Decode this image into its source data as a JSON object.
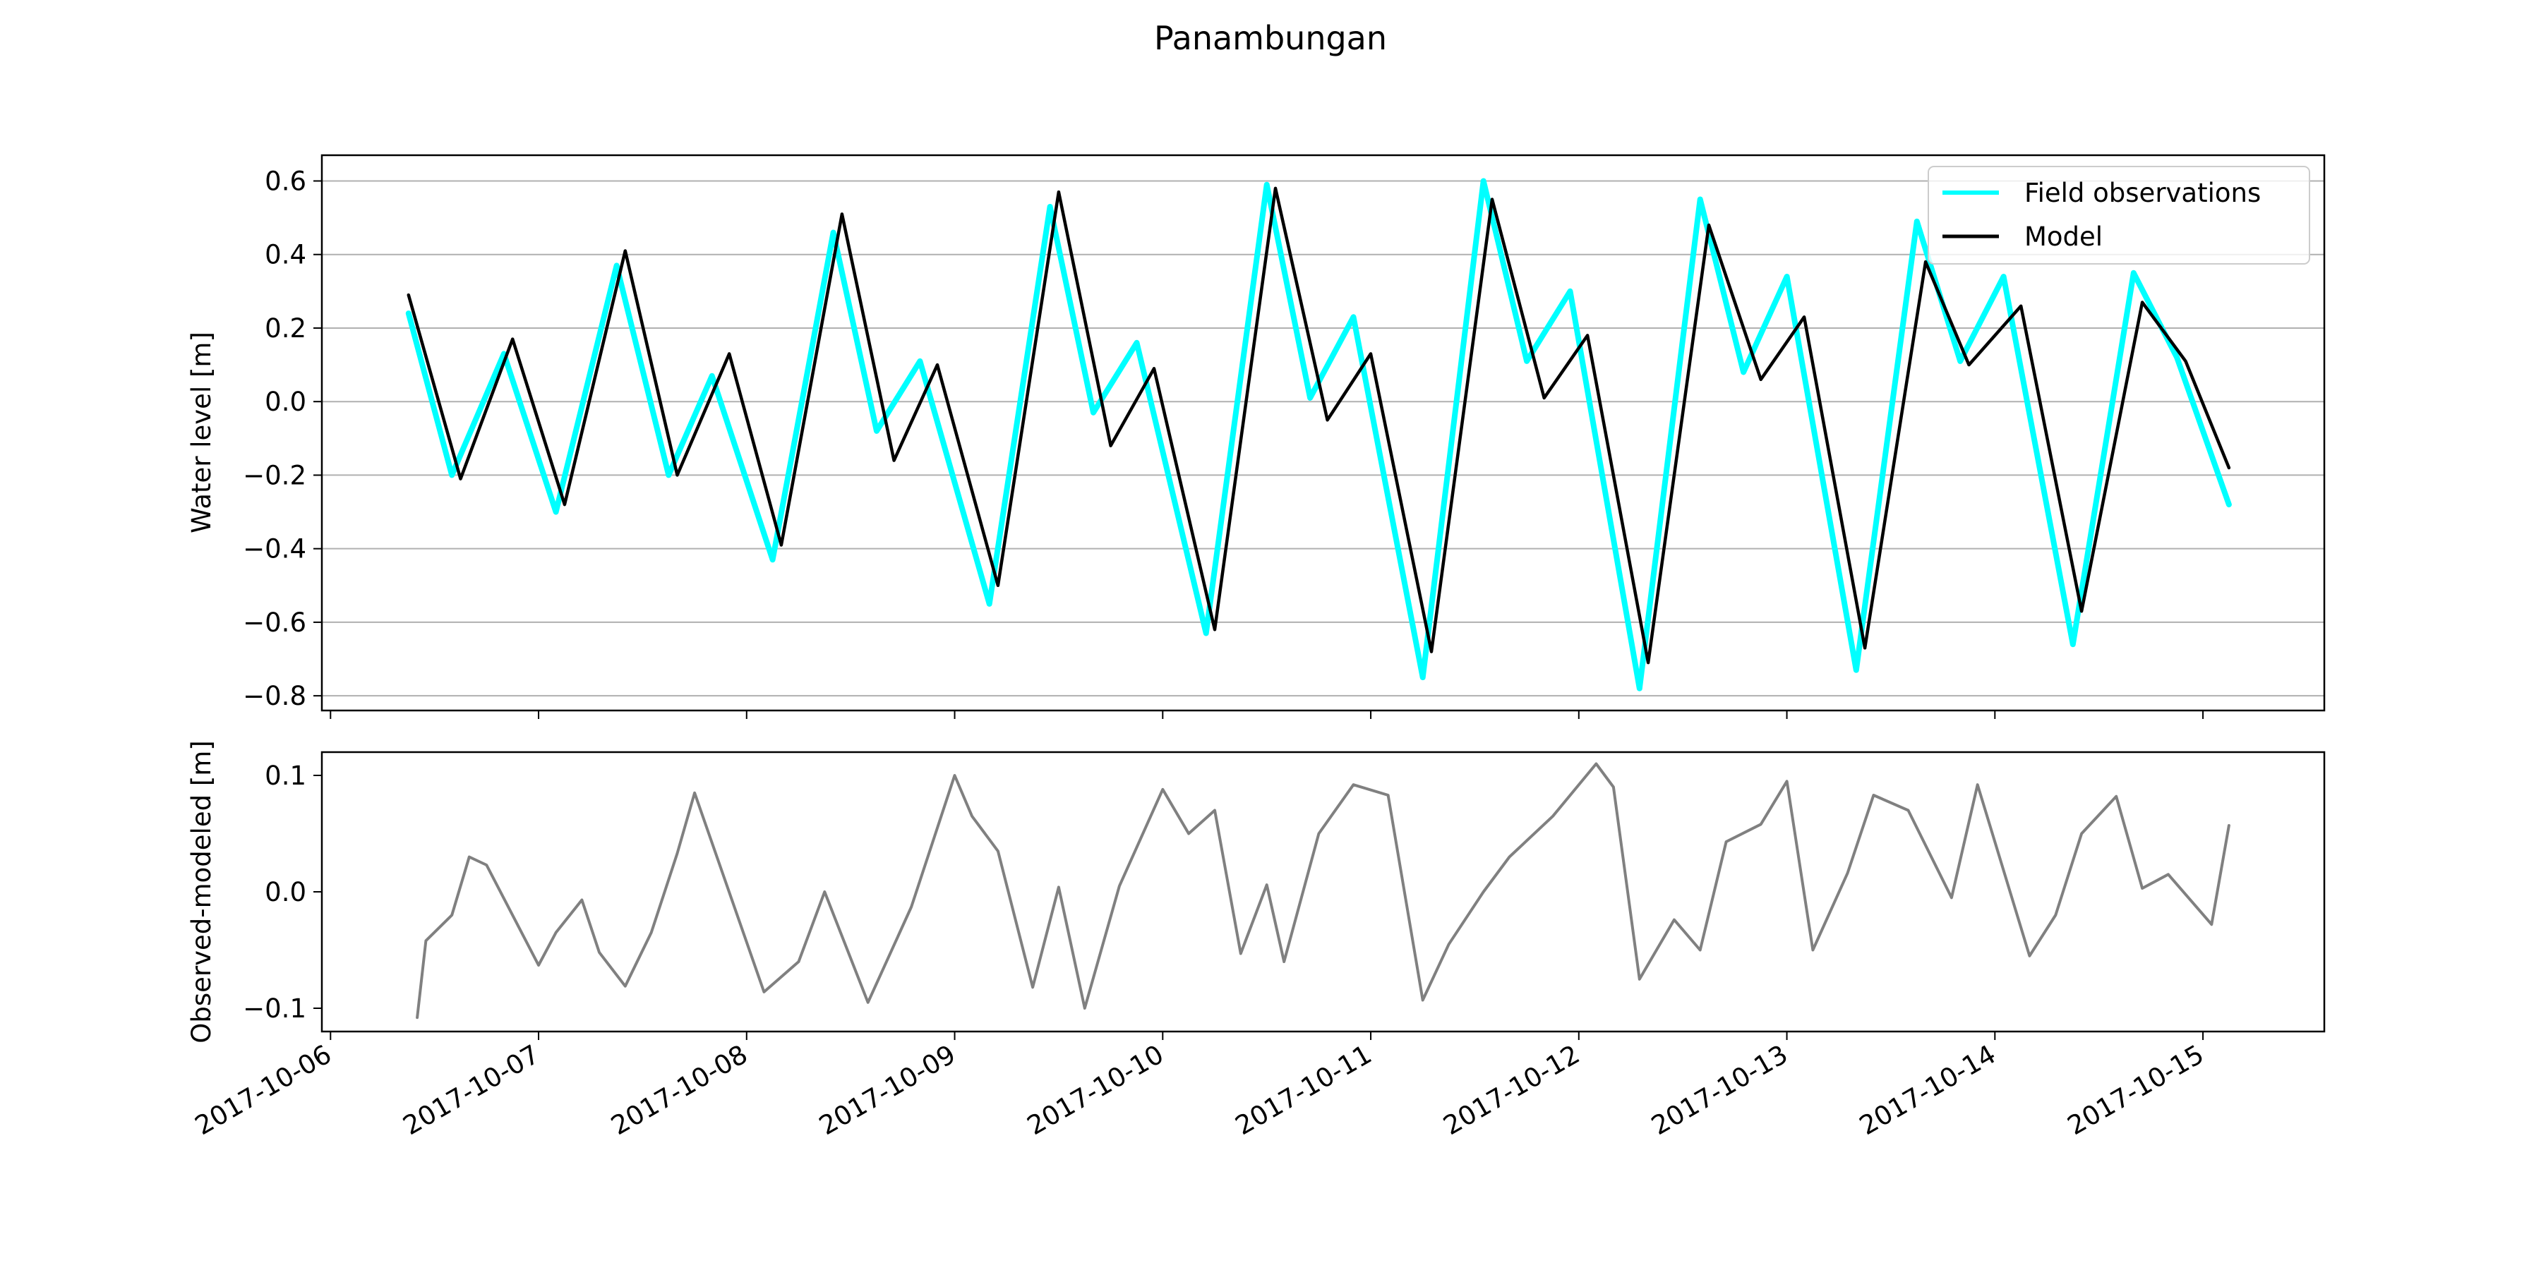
{
  "figure": {
    "title": "Panambungan"
  },
  "chart_data": [
    {
      "type": "line",
      "name": "water-level",
      "ylabel": "Water level [m]",
      "xlabel": "",
      "ylim": [
        -0.84,
        0.67
      ],
      "xlim": [
        "2017-10-05T23:00",
        "2017-10-15T14:00"
      ],
      "yticks": [
        -0.8,
        -0.6,
        -0.4,
        -0.2,
        0.0,
        0.2,
        0.4,
        0.6
      ],
      "ytick_labels": [
        "−0.8",
        "−0.6",
        "−0.4",
        "−0.2",
        "0.0",
        "0.2",
        "0.4",
        "0.6"
      ],
      "xticks": [
        "2017-10-06",
        "2017-10-07",
        "2017-10-08",
        "2017-10-09",
        "2017-10-10",
        "2017-10-11",
        "2017-10-12",
        "2017-10-13",
        "2017-10-14",
        "2017-10-15"
      ],
      "grid": "horizontal",
      "legend": "top-right",
      "series": [
        {
          "name": "Field observations",
          "color": "#00ffff",
          "x": [
            "2017-10-06T09:00",
            "2017-10-06T14:00",
            "2017-10-06T20:00",
            "2017-10-07T02:00",
            "2017-10-07T09:00",
            "2017-10-07T15:00",
            "2017-10-07T20:00",
            "2017-10-08T03:00",
            "2017-10-08T10:00",
            "2017-10-08T15:00",
            "2017-10-08T20:00",
            "2017-10-09T04:00",
            "2017-10-09T11:00",
            "2017-10-09T16:00",
            "2017-10-09T21:00",
            "2017-10-10T05:00",
            "2017-10-10T12:00",
            "2017-10-10T17:00",
            "2017-10-10T22:00",
            "2017-10-11T06:00",
            "2017-10-11T13:00",
            "2017-10-11T18:00",
            "2017-10-11T23:00",
            "2017-10-12T07:00",
            "2017-10-12T14:00",
            "2017-10-12T19:00",
            "2017-10-13T00:00",
            "2017-10-13T08:00",
            "2017-10-13T15:00",
            "2017-10-13T20:00",
            "2017-10-14T01:00",
            "2017-10-14T09:00",
            "2017-10-14T16:00",
            "2017-10-14T21:00",
            "2017-10-15T03:00"
          ],
          "values": [
            0.24,
            -0.2,
            0.13,
            -0.3,
            0.37,
            -0.2,
            0.07,
            -0.43,
            0.46,
            -0.08,
            0.11,
            -0.55,
            0.53,
            -0.03,
            0.16,
            -0.63,
            0.59,
            0.01,
            0.23,
            -0.75,
            0.6,
            0.11,
            0.3,
            -0.78,
            0.55,
            0.08,
            0.34,
            -0.73,
            0.49,
            0.11,
            0.34,
            -0.66,
            0.35,
            0.12,
            -0.28
          ]
        },
        {
          "name": "Model",
          "color": "#000000",
          "x": [
            "2017-10-06T09:00",
            "2017-10-06T15:00",
            "2017-10-06T21:00",
            "2017-10-07T03:00",
            "2017-10-07T10:00",
            "2017-10-07T16:00",
            "2017-10-07T22:00",
            "2017-10-08T04:00",
            "2017-10-08T11:00",
            "2017-10-08T17:00",
            "2017-10-08T22:00",
            "2017-10-09T05:00",
            "2017-10-09T12:00",
            "2017-10-09T18:00",
            "2017-10-09T23:00",
            "2017-10-10T06:00",
            "2017-10-10T13:00",
            "2017-10-10T19:00",
            "2017-10-11T00:00",
            "2017-10-11T07:00",
            "2017-10-11T14:00",
            "2017-10-11T20:00",
            "2017-10-12T01:00",
            "2017-10-12T08:00",
            "2017-10-12T15:00",
            "2017-10-12T21:00",
            "2017-10-13T02:00",
            "2017-10-13T09:00",
            "2017-10-13T16:00",
            "2017-10-13T21:00",
            "2017-10-14T03:00",
            "2017-10-14T10:00",
            "2017-10-14T17:00",
            "2017-10-14T22:00",
            "2017-10-15T03:00"
          ],
          "values": [
            0.29,
            -0.21,
            0.17,
            -0.28,
            0.41,
            -0.2,
            0.13,
            -0.39,
            0.51,
            -0.16,
            0.1,
            -0.5,
            0.57,
            -0.12,
            0.09,
            -0.62,
            0.58,
            -0.05,
            0.13,
            -0.68,
            0.55,
            0.01,
            0.18,
            -0.71,
            0.48,
            0.06,
            0.23,
            -0.67,
            0.38,
            0.1,
            0.26,
            -0.57,
            0.27,
            0.11,
            -0.18
          ]
        }
      ]
    },
    {
      "type": "line",
      "name": "residual",
      "ylabel": "Observed-modeled [m]",
      "xlabel": "",
      "ylim": [
        -0.12,
        0.12
      ],
      "xlim": [
        "2017-10-05T23:00",
        "2017-10-15T14:00"
      ],
      "yticks": [
        -0.1,
        0.0,
        0.1
      ],
      "ytick_labels": [
        "−0.1",
        "0.0",
        "0.1"
      ],
      "xticks": [
        "2017-10-06",
        "2017-10-07",
        "2017-10-08",
        "2017-10-09",
        "2017-10-10",
        "2017-10-11",
        "2017-10-12",
        "2017-10-13",
        "2017-10-14",
        "2017-10-15"
      ],
      "grid": "off",
      "series": [
        {
          "color": "#808080",
          "x": [
            "2017-10-06T10:00",
            "2017-10-06T11:00",
            "2017-10-06T14:00",
            "2017-10-06T16:00",
            "2017-10-06T18:00",
            "2017-10-07T00:00",
            "2017-10-07T02:00",
            "2017-10-07T05:00",
            "2017-10-07T07:00",
            "2017-10-07T10:00",
            "2017-10-07T13:00",
            "2017-10-07T16:00",
            "2017-10-07T18:00",
            "2017-10-08T02:00",
            "2017-10-08T06:00",
            "2017-10-08T09:00",
            "2017-10-08T14:00",
            "2017-10-08T19:00",
            "2017-10-09T00:00",
            "2017-10-09T02:00",
            "2017-10-09T05:00",
            "2017-10-09T09:00",
            "2017-10-09T12:00",
            "2017-10-09T15:00",
            "2017-10-09T19:00",
            "2017-10-10T00:00",
            "2017-10-10T03:00",
            "2017-10-10T06:00",
            "2017-10-10T09:00",
            "2017-10-10T12:00",
            "2017-10-10T14:00",
            "2017-10-10T18:00",
            "2017-10-10T22:00",
            "2017-10-11T02:00",
            "2017-10-11T06:00",
            "2017-10-11T09:00",
            "2017-10-11T13:00",
            "2017-10-11T16:00",
            "2017-10-11T21:00",
            "2017-10-12T02:00",
            "2017-10-12T04:00",
            "2017-10-12T07:00",
            "2017-10-12T11:00",
            "2017-10-12T14:00",
            "2017-10-12T17:00",
            "2017-10-12T21:00",
            "2017-10-13T00:00",
            "2017-10-13T03:00",
            "2017-10-13T07:00",
            "2017-10-13T10:00",
            "2017-10-13T14:00",
            "2017-10-13T19:00",
            "2017-10-13T22:00",
            "2017-10-14T04:00",
            "2017-10-14T07:00",
            "2017-10-14T10:00",
            "2017-10-14T14:00",
            "2017-10-14T17:00",
            "2017-10-14T20:00",
            "2017-10-15T01:00",
            "2017-10-15T03:00"
          ],
          "values": [
            -0.108,
            -0.042,
            -0.02,
            0.03,
            0.023,
            -0.063,
            -0.035,
            -0.007,
            -0.052,
            -0.081,
            -0.035,
            0.033,
            0.085,
            -0.086,
            -0.06,
            0.0,
            -0.095,
            -0.013,
            0.1,
            0.065,
            0.035,
            -0.082,
            0.004,
            -0.1,
            0.005,
            0.088,
            0.05,
            0.07,
            -0.053,
            0.006,
            -0.06,
            0.05,
            0.092,
            0.083,
            -0.093,
            -0.045,
            0.0,
            0.03,
            0.065,
            0.11,
            0.09,
            -0.075,
            -0.024,
            -0.05,
            0.043,
            0.058,
            0.095,
            -0.05,
            0.016,
            0.083,
            0.07,
            -0.005,
            0.092,
            -0.055,
            -0.02,
            0.05,
            0.082,
            0.003,
            0.015,
            -0.028,
            0.057
          ]
        }
      ]
    }
  ]
}
